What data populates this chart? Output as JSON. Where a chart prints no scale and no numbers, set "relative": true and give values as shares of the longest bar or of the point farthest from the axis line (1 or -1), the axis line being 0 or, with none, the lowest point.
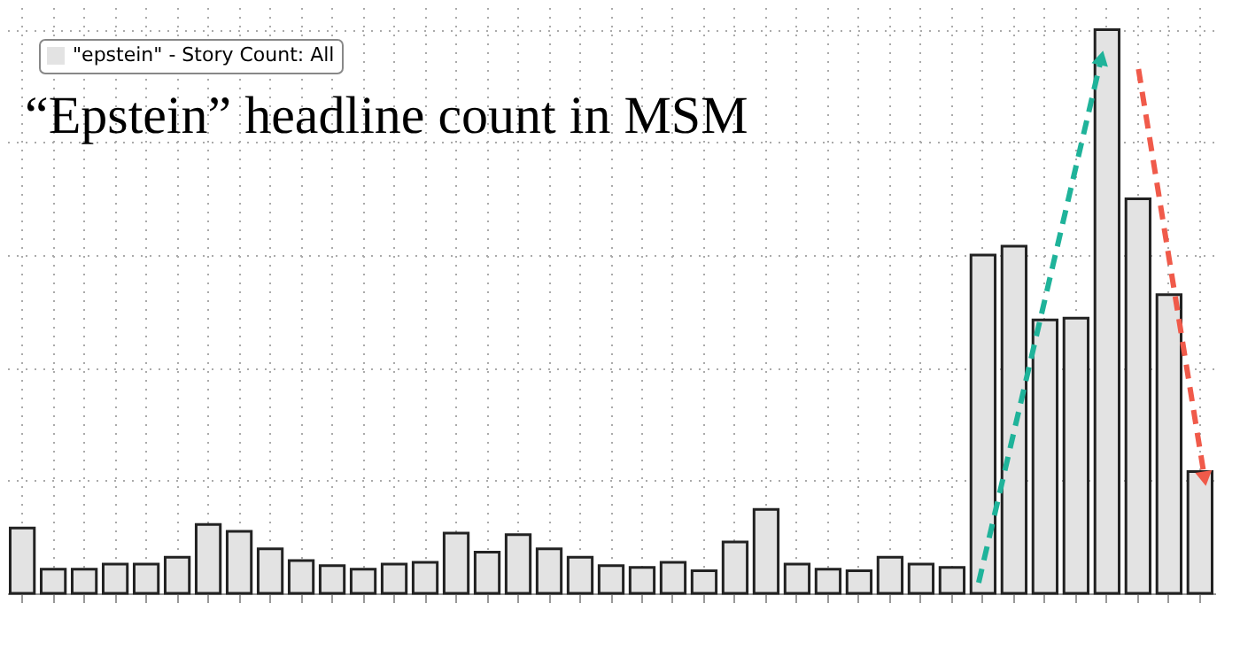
{
  "chart_data": {
    "type": "bar",
    "title": "“Epstein” headline count in MSM",
    "relative": true,
    "grid": true,
    "legend": "top left",
    "tick_labels": false,
    "categories": [
      null,
      null,
      null,
      null,
      null,
      null,
      null,
      null,
      null,
      null,
      null,
      null,
      null,
      null,
      null,
      null,
      null,
      null,
      null,
      null,
      null,
      null,
      null,
      null,
      null,
      null,
      null,
      null,
      null,
      null,
      null,
      null,
      null,
      null,
      null,
      null,
      null,
      null,
      null
    ],
    "series": [
      {
        "name": "\"epstein\" - Story Count: All",
        "color": "#e3e3e3",
        "values": [
          0.116,
          0.043,
          0.043,
          0.052,
          0.052,
          0.064,
          0.122,
          0.11,
          0.079,
          0.058,
          0.049,
          0.043,
          0.052,
          0.055,
          0.107,
          0.073,
          0.104,
          0.079,
          0.064,
          0.049,
          0.046,
          0.055,
          0.04,
          0.091,
          0.149,
          0.052,
          0.043,
          0.04,
          0.064,
          0.052,
          0.046,
          0.6,
          0.616,
          0.485,
          0.488,
          1,
          0.7,
          0.53,
          0.216
        ]
      }
    ]
  }
}
